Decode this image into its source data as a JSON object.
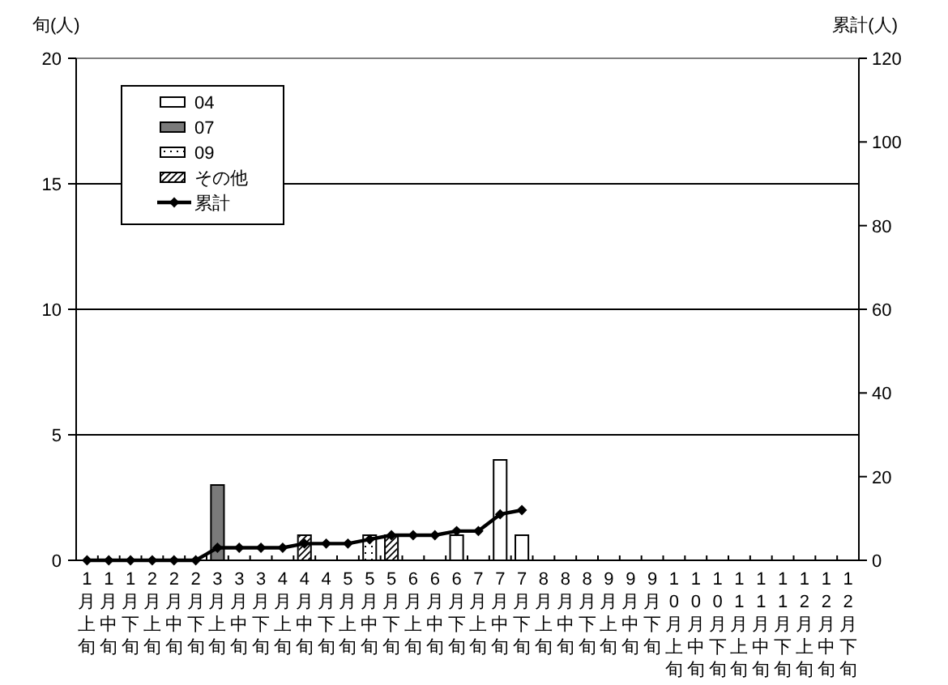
{
  "chart_data": {
    "type": "bar",
    "stacked": true,
    "ylabel": "旬(人)",
    "y2label": "累計(人)",
    "categories": [
      "1月上旬",
      "1月中旬",
      "1月下旬",
      "2月上旬",
      "2月中旬",
      "2月下旬",
      "3月上旬",
      "3月中旬",
      "3月下旬",
      "4月上旬",
      "4月中旬",
      "4月下旬",
      "5月上旬",
      "5月中旬",
      "5月下旬",
      "6月上旬",
      "6月中旬",
      "6月下旬",
      "7月上旬",
      "7月中旬",
      "7月下旬",
      "8月上旬",
      "8月中旬",
      "8月下旬",
      "9月上旬",
      "9月中旬",
      "9月下旬",
      "10月上旬",
      "10月中旬",
      "10月下旬",
      "11月上旬",
      "11月中旬",
      "11月下旬",
      "12月上旬",
      "12月中旬",
      "12月下旬"
    ],
    "ylim": [
      0,
      20
    ],
    "yticks": [
      0,
      5,
      10,
      15,
      20
    ],
    "y2lim": [
      0,
      120
    ],
    "y2ticks": [
      0,
      20,
      40,
      60,
      80,
      100,
      120
    ],
    "grid": "y",
    "legend": "top left",
    "series": [
      {
        "name": "04",
        "color": "#ffffff",
        "values": [
          0,
          0,
          0,
          0,
          0,
          0,
          0,
          0,
          0,
          0,
          0,
          0,
          0,
          0,
          0,
          0,
          0,
          1,
          0,
          4,
          1,
          null,
          null,
          null,
          null,
          null,
          null,
          null,
          null,
          null,
          null,
          null,
          null,
          null,
          null,
          null
        ]
      },
      {
        "name": "07",
        "color": "#7a7a7a",
        "values": [
          0,
          0,
          0,
          0,
          0,
          0,
          3,
          0,
          0,
          0,
          0,
          0,
          0,
          0,
          0,
          0,
          0,
          0,
          0,
          0,
          0,
          null,
          null,
          null,
          null,
          null,
          null,
          null,
          null,
          null,
          null,
          null,
          null,
          null,
          null,
          null
        ]
      },
      {
        "name": "09",
        "color": "#ffffff",
        "values": [
          0,
          0,
          0,
          0,
          0,
          0,
          0,
          0,
          0,
          0,
          0,
          0,
          0,
          1,
          0,
          0,
          0,
          0,
          0,
          0,
          0,
          null,
          null,
          null,
          null,
          null,
          null,
          null,
          null,
          null,
          null,
          null,
          null,
          null,
          null,
          null
        ]
      },
      {
        "name": "その他",
        "color": "#ffffff",
        "values": [
          0,
          0,
          0,
          0,
          0,
          0,
          0,
          0,
          0,
          0,
          1,
          0,
          0,
          0,
          1,
          0,
          0,
          0,
          0,
          0,
          0,
          null,
          null,
          null,
          null,
          null,
          null,
          null,
          null,
          null,
          null,
          null,
          null,
          null,
          null,
          null
        ]
      },
      {
        "name": "累計",
        "type": "line",
        "axis": "y2",
        "color": "#000000",
        "marker": "diamond",
        "values": [
          0,
          0,
          0,
          0,
          0,
          0,
          3,
          3,
          3,
          3,
          4,
          4,
          4,
          5,
          6,
          6,
          6,
          7,
          7,
          11,
          12,
          null,
          null,
          null,
          null,
          null,
          null,
          null,
          null,
          null,
          null,
          null,
          null,
          null,
          null,
          null
        ]
      }
    ]
  }
}
